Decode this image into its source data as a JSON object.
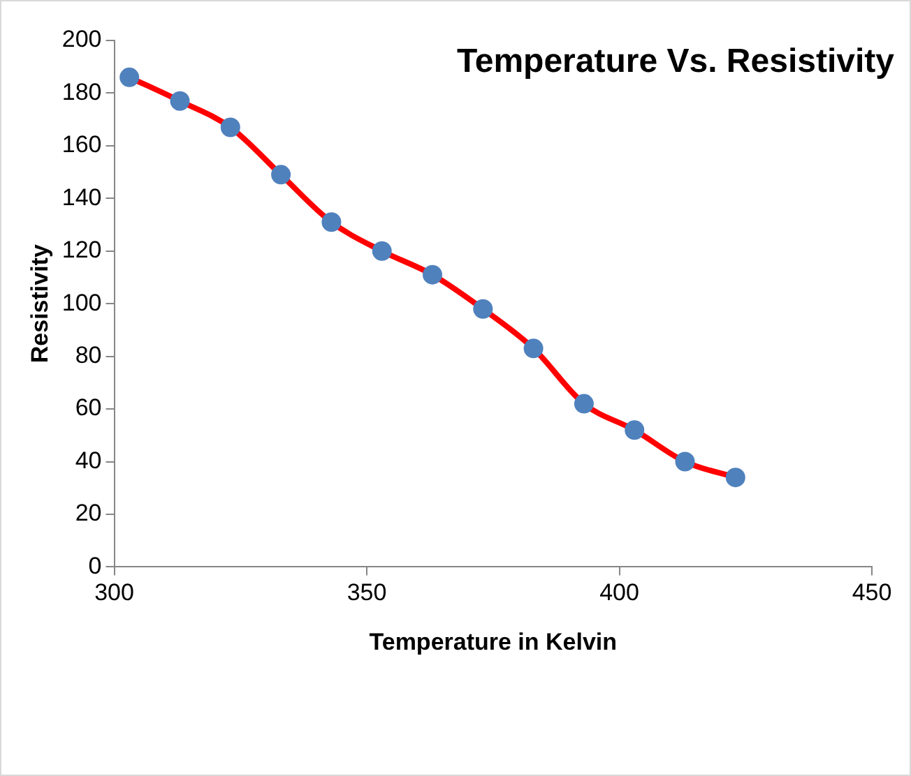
{
  "chart_data": {
    "type": "line",
    "title": "Temperature Vs. Resistivity",
    "xlabel": "Temperature in Kelvin",
    "ylabel": "Resistivity",
    "x": [
      303,
      313,
      323,
      333,
      343,
      353,
      363,
      373,
      383,
      393,
      403,
      413,
      423
    ],
    "series": [
      {
        "color": "#ff0000",
        "values": [
          186,
          177,
          167,
          149,
          131,
          120,
          111,
          98,
          83,
          62,
          52,
          40,
          34
        ]
      }
    ],
    "xlim": [
      300,
      450
    ],
    "xticks": [
      300,
      350,
      400,
      450
    ],
    "ylim": [
      0,
      200
    ],
    "yticks": [
      0,
      20,
      40,
      60,
      80,
      100,
      120,
      140,
      160,
      180,
      200
    ],
    "grid": false,
    "legend": false,
    "marker": "circle",
    "line_style": "solid"
  }
}
